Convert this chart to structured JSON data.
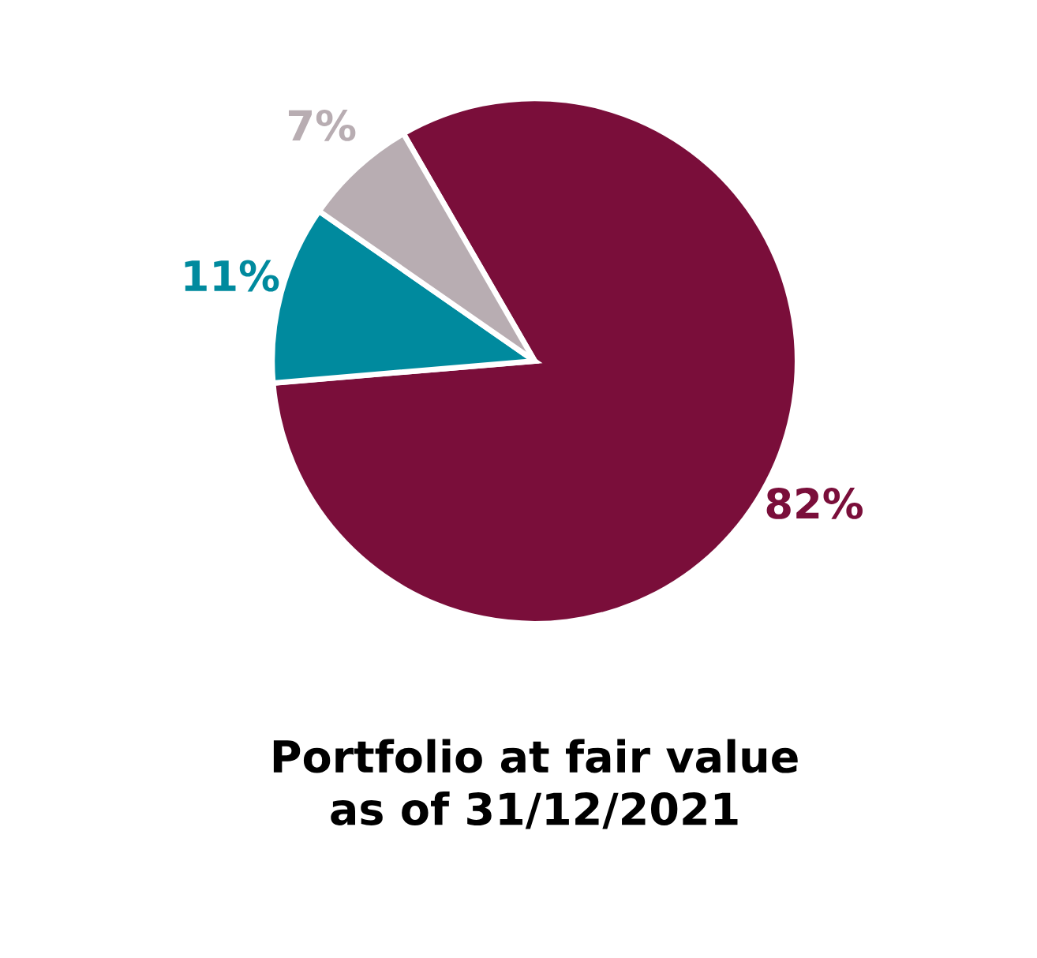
{
  "chart_data": {
    "type": "pie",
    "title": "Portfolio at fair value\nas of 31/12/2021",
    "categories": [
      null,
      null,
      null
    ],
    "values": [
      82,
      11,
      7
    ],
    "colors": [
      "#7a0e3a",
      "#008a9e",
      "#b8adb2"
    ],
    "value_labels": [
      "82%",
      "11%",
      "7%"
    ],
    "legend": false
  }
}
